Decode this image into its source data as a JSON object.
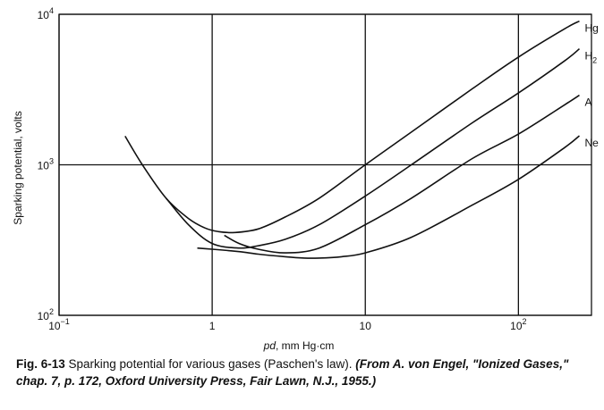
{
  "chart_data": {
    "type": "line",
    "title": "",
    "xlabel": "pd, mm Hg·cm",
    "xlabel_var": "pd",
    "xlabel_unit": ", mm Hg·cm",
    "ylabel": "Sparking potential, volts",
    "x_scale": "log",
    "y_scale": "log",
    "xlim": [
      0.1,
      300
    ],
    "ylim": [
      100,
      10000
    ],
    "grid": true,
    "x_ticks": [
      {
        "value": 0.1,
        "base": "10",
        "exp": "−1"
      },
      {
        "value": 1,
        "label": "1"
      },
      {
        "value": 10,
        "label": "10"
      },
      {
        "value": 100,
        "base": "10",
        "exp": "2"
      }
    ],
    "y_ticks": [
      {
        "value": 100,
        "base": "10",
        "exp": "2"
      },
      {
        "value": 1000,
        "base": "10",
        "exp": "3"
      },
      {
        "value": 10000,
        "base": "10",
        "exp": "4"
      }
    ],
    "series": [
      {
        "name": "Hg",
        "label_base": "Hg",
        "label_sub": "",
        "x": [
          0.27,
          0.35,
          0.5,
          0.7,
          0.9,
          1.1,
          1.4,
          2,
          3,
          5,
          10,
          20,
          50,
          100,
          200,
          250
        ],
        "y": [
          1550,
          1000,
          600,
          440,
          380,
          360,
          355,
          375,
          450,
          600,
          1000,
          1650,
          3200,
          5200,
          8000,
          9000
        ]
      },
      {
        "name": "H2",
        "label_base": "H",
        "label_sub": "2",
        "x": [
          0.5,
          0.7,
          1,
          1.5,
          2,
          3,
          5,
          10,
          20,
          50,
          100,
          200,
          250
        ],
        "y": [
          600,
          400,
          300,
          280,
          290,
          320,
          400,
          620,
          1000,
          1900,
          3000,
          4900,
          5900
        ]
      },
      {
        "name": "A",
        "label_base": "A",
        "label_sub": "",
        "x": [
          1.2,
          1.5,
          2,
          3,
          5,
          10,
          20,
          50,
          100,
          200,
          250
        ],
        "y": [
          340,
          300,
          275,
          260,
          280,
          400,
          600,
          1100,
          1600,
          2500,
          2900
        ]
      },
      {
        "name": "Ne",
        "label_base": "Ne",
        "label_sub": "",
        "x": [
          0.8,
          1,
          1.5,
          2,
          3,
          4,
          5,
          7,
          10,
          20,
          50,
          100,
          200,
          250
        ],
        "y": [
          280,
          275,
          265,
          255,
          245,
          240,
          240,
          245,
          260,
          330,
          540,
          800,
          1300,
          1560
        ]
      }
    ]
  },
  "caption": {
    "fig": "Fig. 6-13",
    "text": " Sparking potential for various gases (Paschen's law). ",
    "source": "(From A. von Engel, \"Ionized Gases,\" chap. 7, p. 172, Oxford University Press, Fair Lawn, N.J., 1955.)"
  }
}
